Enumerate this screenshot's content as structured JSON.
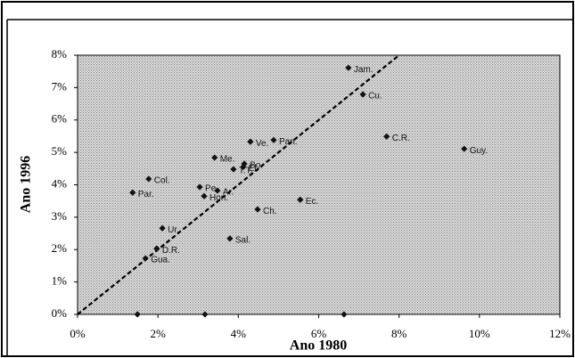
{
  "chart_data": {
    "type": "scatter",
    "xlabel": "Ano 1980",
    "ylabel": "Ano 1996",
    "xlim": [
      0,
      12
    ],
    "ylim": [
      0,
      8
    ],
    "xticks": [
      {
        "value": 0,
        "label": "0%"
      },
      {
        "value": 2,
        "label": "2%"
      },
      {
        "value": 4,
        "label": "4%"
      },
      {
        "value": 6,
        "label": "6%"
      },
      {
        "value": 8,
        "label": "8%"
      },
      {
        "value": 10,
        "label": "10%"
      },
      {
        "value": 12,
        "label": "12%"
      }
    ],
    "yticks": [
      {
        "value": 0,
        "label": "0%"
      },
      {
        "value": 1,
        "label": "1%"
      },
      {
        "value": 2,
        "label": "2%"
      },
      {
        "value": 3,
        "label": "3%"
      },
      {
        "value": 4,
        "label": "4%"
      },
      {
        "value": 5,
        "label": "5%"
      },
      {
        "value": 6,
        "label": "6%"
      },
      {
        "value": 7,
        "label": "7%"
      },
      {
        "value": 8,
        "label": "8%"
      }
    ],
    "color": "#111111",
    "series": [
      {
        "labels": [
          "Jam.",
          "Cu.",
          "C.R.",
          "Guy.",
          "Pan.",
          "Ve.",
          "Me.",
          "Bo.",
          "El.",
          "T.T.",
          "Pe.",
          "Ar.",
          "Hon.",
          "Col.",
          "Par.",
          "Ec.",
          "Ch.",
          "Sal.",
          "Ur.",
          "D.R.",
          "Gua.",
          null,
          null,
          null
        ],
        "x": [
          6.74,
          7.1,
          7.69,
          9.62,
          4.88,
          4.3,
          3.41,
          4.15,
          4.12,
          3.88,
          3.04,
          3.48,
          3.15,
          1.77,
          1.37,
          5.54,
          4.48,
          3.79,
          2.11,
          1.97,
          1.69,
          1.49,
          3.17,
          6.63
        ],
        "values": [
          7.61,
          6.79,
          5.49,
          5.11,
          5.38,
          5.33,
          4.84,
          4.65,
          4.55,
          4.48,
          3.93,
          3.82,
          3.65,
          4.18,
          3.76,
          3.54,
          3.24,
          2.34,
          2.66,
          2.03,
          1.73,
          0,
          0,
          0
        ]
      }
    ],
    "reference_line": {
      "x": [
        0,
        8
      ],
      "values": [
        0,
        8
      ]
    }
  }
}
